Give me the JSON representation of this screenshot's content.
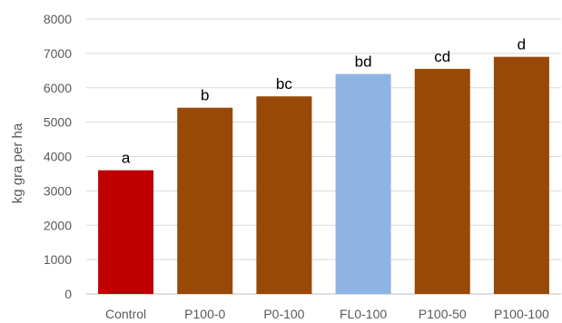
{
  "chart_data": {
    "type": "bar",
    "title": "",
    "xlabel": "",
    "ylabel": "kg gra per ha",
    "ylim": [
      0,
      8000
    ],
    "yticks": [
      0,
      1000,
      2000,
      3000,
      4000,
      5000,
      6000,
      7000,
      8000
    ],
    "grid": true,
    "legend": "none",
    "categories": [
      "Control",
      "P100-0",
      "P0-100",
      "FL0-100",
      "P100-50",
      "P100-100"
    ],
    "values": [
      3600,
      5420,
      5750,
      6400,
      6550,
      6900
    ],
    "annotations": [
      "a",
      "b",
      "bc",
      "bd",
      "cd",
      "d"
    ],
    "colors": [
      "#c00000",
      "#984807",
      "#984807",
      "#8eb4e3",
      "#984807",
      "#984807"
    ]
  }
}
